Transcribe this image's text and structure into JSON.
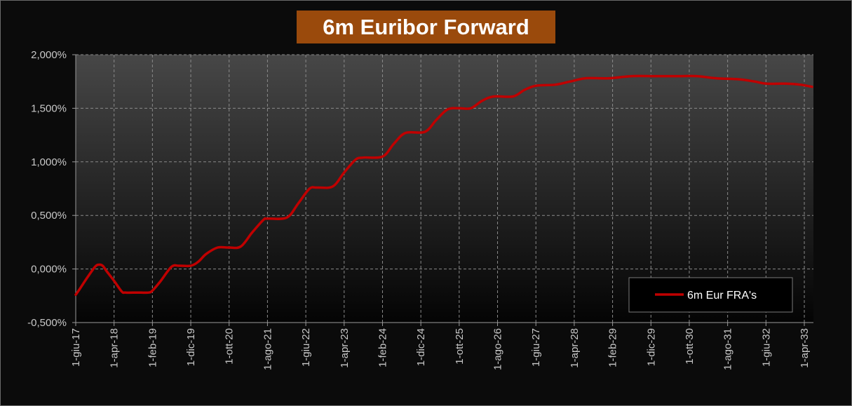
{
  "chart_data": {
    "type": "line",
    "title": "6m Euribor Forward",
    "xlabel": "",
    "ylabel": "",
    "ylim": [
      -0.5,
      2.0
    ],
    "y_ticks": [
      "-0,500%",
      "0,000%",
      "0,500%",
      "1,000%",
      "1,500%",
      "2,000%"
    ],
    "x_ticks": [
      "1-giu-17",
      "1-apr-18",
      "1-feb-19",
      "1-dic-19",
      "1-ott-20",
      "1-ago-21",
      "1-giu-22",
      "1-apr-23",
      "1-feb-24",
      "1-dic-24",
      "1-ott-25",
      "1-ago-26",
      "1-giu-27",
      "1-apr-28",
      "1-feb-29",
      "1-dic-29",
      "1-ott-30",
      "1-ago-31",
      "1-giu-32",
      "1-apr-33"
    ],
    "grid": true,
    "legend_position": "bottom-right",
    "series": [
      {
        "name": "6m Eur FRA's",
        "color": "#c00000",
        "points": [
          [
            "2017-06-01",
            -0.24
          ],
          [
            "2017-07-01",
            -0.19
          ],
          [
            "2017-09-01",
            -0.08
          ],
          [
            "2017-11-01",
            0.02
          ],
          [
            "2017-12-01",
            0.04
          ],
          [
            "2018-01-01",
            0.03
          ],
          [
            "2018-02-01",
            -0.02
          ],
          [
            "2018-04-01",
            -0.11
          ],
          [
            "2018-06-01",
            -0.21
          ],
          [
            "2018-07-01",
            -0.22
          ],
          [
            "2018-10-01",
            -0.22
          ],
          [
            "2019-01-01",
            -0.22
          ],
          [
            "2019-02-01",
            -0.2
          ],
          [
            "2019-04-01",
            -0.12
          ],
          [
            "2019-07-01",
            0.02
          ],
          [
            "2019-09-01",
            0.03
          ],
          [
            "2019-12-01",
            0.03
          ],
          [
            "2020-02-01",
            0.07
          ],
          [
            "2020-04-01",
            0.14
          ],
          [
            "2020-07-01",
            0.2
          ],
          [
            "2020-10-01",
            0.2
          ],
          [
            "2021-01-01",
            0.21
          ],
          [
            "2021-04-01",
            0.34
          ],
          [
            "2021-07-01",
            0.46
          ],
          [
            "2021-08-01",
            0.47
          ],
          [
            "2022-01-01",
            0.48
          ],
          [
            "2022-04-01",
            0.61
          ],
          [
            "2022-07-01",
            0.75
          ],
          [
            "2022-09-01",
            0.76
          ],
          [
            "2023-01-01",
            0.77
          ],
          [
            "2023-04-01",
            0.9
          ],
          [
            "2023-07-01",
            1.02
          ],
          [
            "2023-09-01",
            1.04
          ],
          [
            "2024-02-01",
            1.05
          ],
          [
            "2024-05-01",
            1.17
          ],
          [
            "2024-08-01",
            1.27
          ],
          [
            "2025-01-01",
            1.28
          ],
          [
            "2025-04-01",
            1.39
          ],
          [
            "2025-07-01",
            1.49
          ],
          [
            "2025-10-01",
            1.5
          ],
          [
            "2026-01-01",
            1.5
          ],
          [
            "2026-04-01",
            1.57
          ],
          [
            "2026-07-01",
            1.61
          ],
          [
            "2026-12-01",
            1.61
          ],
          [
            "2027-03-01",
            1.67
          ],
          [
            "2027-06-01",
            1.71
          ],
          [
            "2027-11-01",
            1.72
          ],
          [
            "2028-03-01",
            1.75
          ],
          [
            "2028-07-01",
            1.78
          ],
          [
            "2029-01-01",
            1.78
          ],
          [
            "2029-07-01",
            1.8
          ],
          [
            "2030-01-01",
            1.8
          ],
          [
            "2030-07-01",
            1.8
          ],
          [
            "2030-12-01",
            1.8
          ],
          [
            "2031-05-01",
            1.78
          ],
          [
            "2031-11-01",
            1.77
          ],
          [
            "2032-03-01",
            1.75
          ],
          [
            "2032-06-01",
            1.73
          ],
          [
            "2032-11-01",
            1.73
          ],
          [
            "2033-03-01",
            1.72
          ],
          [
            "2033-06-01",
            1.7
          ]
        ]
      }
    ]
  }
}
